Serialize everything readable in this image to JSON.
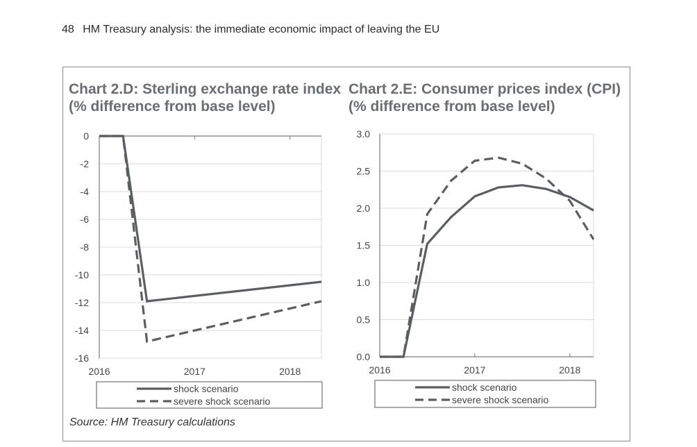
{
  "page": {
    "number": "48",
    "header": "HM Treasury analysis: the immediate economic impact of leaving the EU",
    "source": "Source: HM Treasury calculations"
  },
  "colors": {
    "line": "#5a5e62",
    "grid": "#d9d9d9",
    "axis": "#7a7a7a",
    "title": "#6a6e72"
  },
  "chart_data": [
    {
      "type": "line",
      "title": "Chart 2.D: Sterling exchange rate index",
      "subtitle": "(% difference from base level)",
      "xlabel": "",
      "ylabel": "",
      "xlim": [
        2016,
        2018.33
      ],
      "ylim": [
        -16,
        0
      ],
      "yticks": [
        0,
        -2,
        -4,
        -6,
        -8,
        -10,
        -12,
        -14,
        -16
      ],
      "ytick_labels": [
        "0",
        "-2",
        "-4",
        "-6",
        "-8",
        "-10",
        "-12",
        "-14",
        "-16"
      ],
      "xticks": [
        2016,
        2017,
        2018
      ],
      "xtick_labels": [
        "2016",
        "2017",
        "2018"
      ],
      "grid": true,
      "legend": "bottom",
      "series": [
        {
          "name": "shock scenario",
          "style": "solid",
          "x": [
            2016,
            2016.25,
            2016.5,
            2018.33
          ],
          "y": [
            0,
            0,
            -11.9,
            -10.5
          ]
        },
        {
          "name": "severe shock scenario",
          "style": "dashed",
          "x": [
            2016,
            2016.25,
            2016.5,
            2018.33
          ],
          "y": [
            0,
            0,
            -14.8,
            -11.9
          ]
        }
      ]
    },
    {
      "type": "line",
      "title": "Chart 2.E: Consumer prices index (CPI)",
      "subtitle": "(% difference from base level)",
      "xlabel": "",
      "ylabel": "",
      "xlim": [
        2016,
        2018.25
      ],
      "ylim": [
        0,
        3
      ],
      "yticks": [
        3,
        2.5,
        2,
        1.5,
        1,
        0.5,
        0
      ],
      "ytick_labels": [
        "3.0",
        "2.5",
        "2.0",
        "1.5",
        "1.0",
        "0.5",
        "0.0"
      ],
      "xticks": [
        2016,
        2017,
        2018
      ],
      "xtick_labels": [
        "2016",
        "2017",
        "2018"
      ],
      "grid": true,
      "legend": "bottom",
      "series": [
        {
          "name": "shock scenario",
          "style": "solid",
          "x": [
            2016,
            2016.25,
            2016.5,
            2016.75,
            2017,
            2017.25,
            2017.5,
            2017.75,
            2018,
            2018.25
          ],
          "y": [
            0,
            0,
            1.52,
            1.88,
            2.16,
            2.28,
            2.31,
            2.26,
            2.15,
            1.97
          ]
        },
        {
          "name": "severe shock scenario",
          "style": "dashed",
          "x": [
            2016,
            2016.25,
            2016.5,
            2016.75,
            2017,
            2017.25,
            2017.5,
            2017.75,
            2018,
            2018.25
          ],
          "y": [
            0,
            0,
            1.92,
            2.37,
            2.64,
            2.68,
            2.6,
            2.4,
            2.1,
            1.58
          ]
        }
      ]
    }
  ]
}
